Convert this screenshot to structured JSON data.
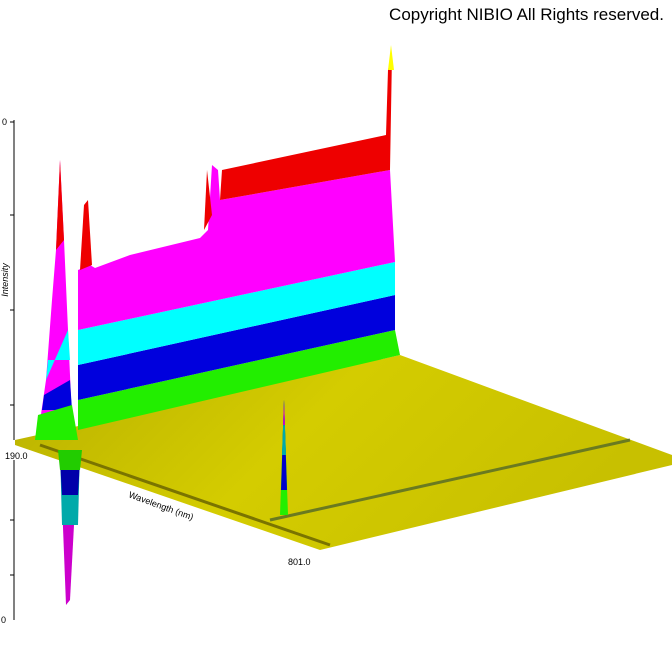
{
  "header": {
    "copyright": "Copyright NIBIO All Rights reserved."
  },
  "axes": {
    "intensity_label": "Intensity",
    "wavelength_label": "Wavelength (nm)",
    "wavelength_start": "190.0",
    "wavelength_end": "801.0",
    "intensity_top": "0",
    "intensity_bottom": "0"
  }
}
